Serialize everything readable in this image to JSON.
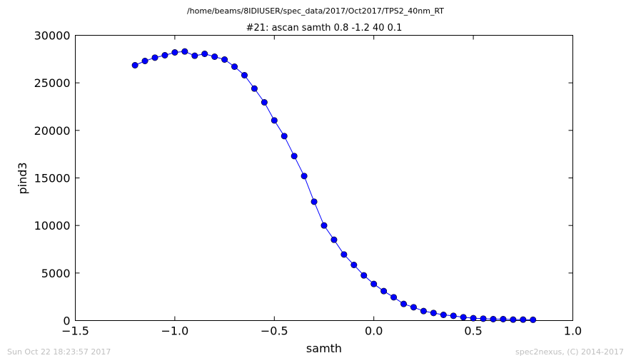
{
  "suptitle": "/home/beams/8IDIUSER/spec_data/2017/Oct2017/TPS2_40nm_RT",
  "footer": {
    "timestamp": "Sun Oct 22 18:23:57 2017",
    "credit": "spec2nexus, (C) 2014-2017"
  },
  "chart_data": {
    "type": "line",
    "title": "#21: ascan  samth 0.8 -1.2  40 0.1",
    "xlabel": "samth",
    "ylabel": "pind3",
    "xlim": [
      -1.5,
      1.0
    ],
    "ylim": [
      0,
      30000
    ],
    "xticks": [
      -1.5,
      -1.0,
      -0.5,
      0.0,
      0.5,
      1.0
    ],
    "xtick_labels": [
      "−1.5",
      "−1.0",
      "−0.5",
      "0.0",
      "0.5",
      "1.0"
    ],
    "yticks": [
      0,
      5000,
      10000,
      15000,
      20000,
      25000,
      30000
    ],
    "ytick_labels": [
      "0",
      "5000",
      "10000",
      "15000",
      "20000",
      "25000",
      "30000"
    ],
    "grid": false,
    "series": [
      {
        "color": "#0000ff",
        "marker": "circle",
        "x": [
          -1.2,
          -1.15,
          -1.1,
          -1.05,
          -1.0,
          -0.95,
          -0.9,
          -0.85,
          -0.8,
          -0.75,
          -0.7,
          -0.65,
          -0.6,
          -0.55,
          -0.5,
          -0.45,
          -0.4,
          -0.35,
          -0.3,
          -0.25,
          -0.2,
          -0.15,
          -0.1,
          -0.05,
          0.0,
          0.05,
          0.1,
          0.15,
          0.2,
          0.25,
          0.3,
          0.35,
          0.4,
          0.45,
          0.5,
          0.55,
          0.6,
          0.65,
          0.7,
          0.75,
          0.8
        ],
        "y": [
          26850,
          27300,
          27650,
          27900,
          28200,
          28300,
          27850,
          28050,
          27750,
          27450,
          26700,
          25800,
          24400,
          22950,
          21050,
          19400,
          17300,
          15200,
          12500,
          10000,
          8500,
          6950,
          5850,
          4750,
          3850,
          3100,
          2450,
          1750,
          1400,
          1000,
          800,
          600,
          500,
          350,
          250,
          200,
          150,
          150,
          100,
          100,
          80
        ]
      }
    ]
  }
}
